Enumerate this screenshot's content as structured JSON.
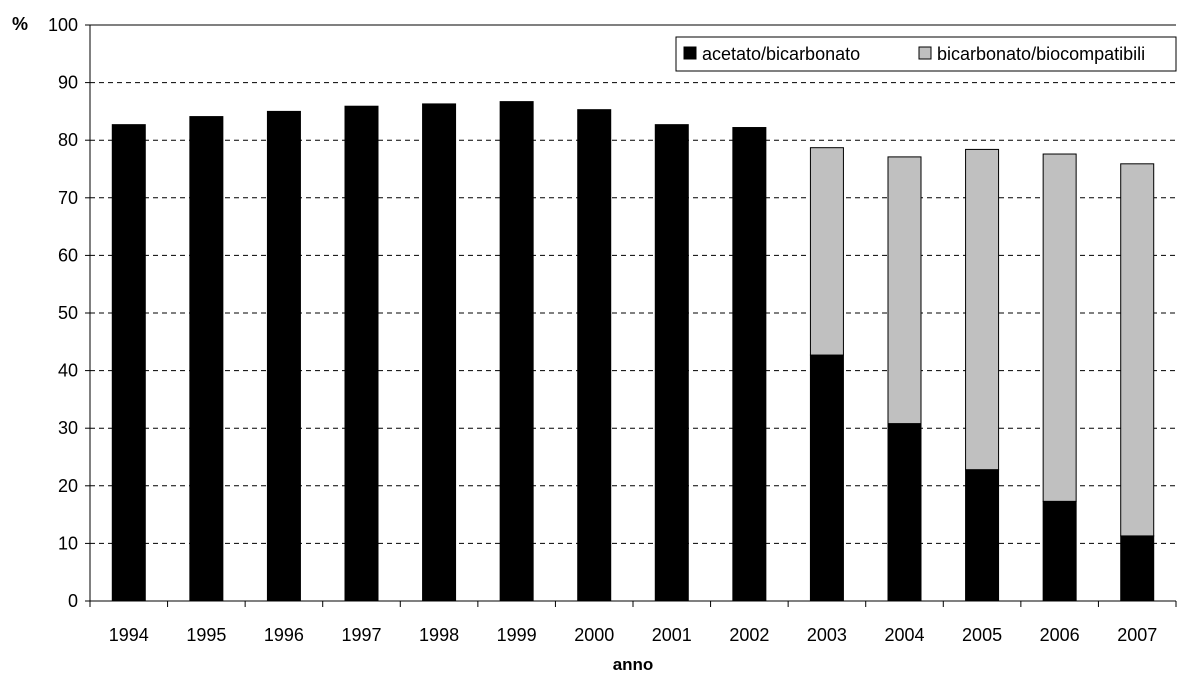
{
  "chart_data": {
    "type": "bar",
    "stacked": true,
    "title": "",
    "xlabel": "anno",
    "ylabel": "%",
    "ylim": [
      0,
      100
    ],
    "yticks": [
      0,
      10,
      20,
      30,
      40,
      50,
      60,
      70,
      80,
      90,
      100
    ],
    "grid": "horizontal dashed",
    "legend_position": "top-right",
    "categories": [
      "1994",
      "1995",
      "1996",
      "1997",
      "1998",
      "1999",
      "2000",
      "2001",
      "2002",
      "2003",
      "2004",
      "2005",
      "2006",
      "2007"
    ],
    "series": [
      {
        "name": "acetato/bicarbonato",
        "color": "#000000",
        "values": [
          82.7,
          84.1,
          85.0,
          85.9,
          86.3,
          86.7,
          85.3,
          82.7,
          82.2,
          42.7,
          30.8,
          22.8,
          17.3,
          11.3
        ]
      },
      {
        "name": "bicarbonato/biocompatibili",
        "color": "#c0c0c0",
        "values": [
          0,
          0,
          0,
          0,
          0,
          0,
          0,
          0,
          0,
          36.0,
          46.3,
          55.6,
          60.3,
          64.6
        ]
      }
    ]
  }
}
